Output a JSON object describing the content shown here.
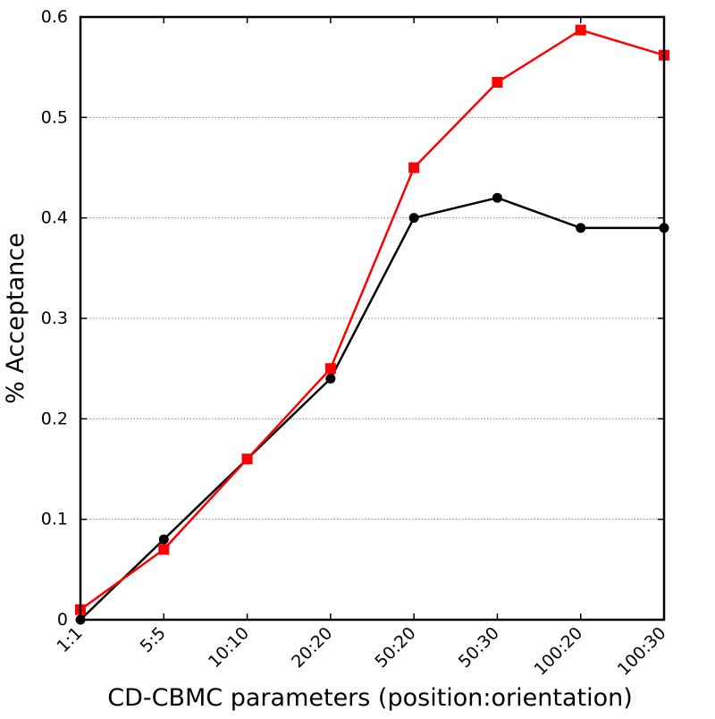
{
  "chart_data": {
    "type": "line",
    "title": "",
    "xlabel": "CD-CBMC parameters (position:orientation)",
    "ylabel": "% Acceptance",
    "categories": [
      "1:1",
      "5:5",
      "10:10",
      "20:20",
      "50:20",
      "50:30",
      "100:20",
      "100:30"
    ],
    "ylim": [
      0,
      0.6
    ],
    "yticks": [
      0,
      0.1,
      0.2,
      0.3,
      0.4,
      0.5,
      0.6
    ],
    "ytick_labels": [
      "0",
      "0.1",
      "0.2",
      "0.3",
      "0.4",
      "0.5",
      "0.6"
    ],
    "grid": "horizontal dotted",
    "legend": "none",
    "series": [
      {
        "color": "#000000",
        "marker": "circle",
        "values": [
          0.0,
          0.08,
          0.16,
          0.24,
          0.4,
          0.42,
          0.39,
          0.39
        ]
      },
      {
        "color": "#ff0000",
        "marker": "square",
        "values": [
          0.01,
          0.07,
          0.16,
          0.25,
          0.45,
          0.535,
          0.587,
          0.562
        ]
      }
    ]
  }
}
